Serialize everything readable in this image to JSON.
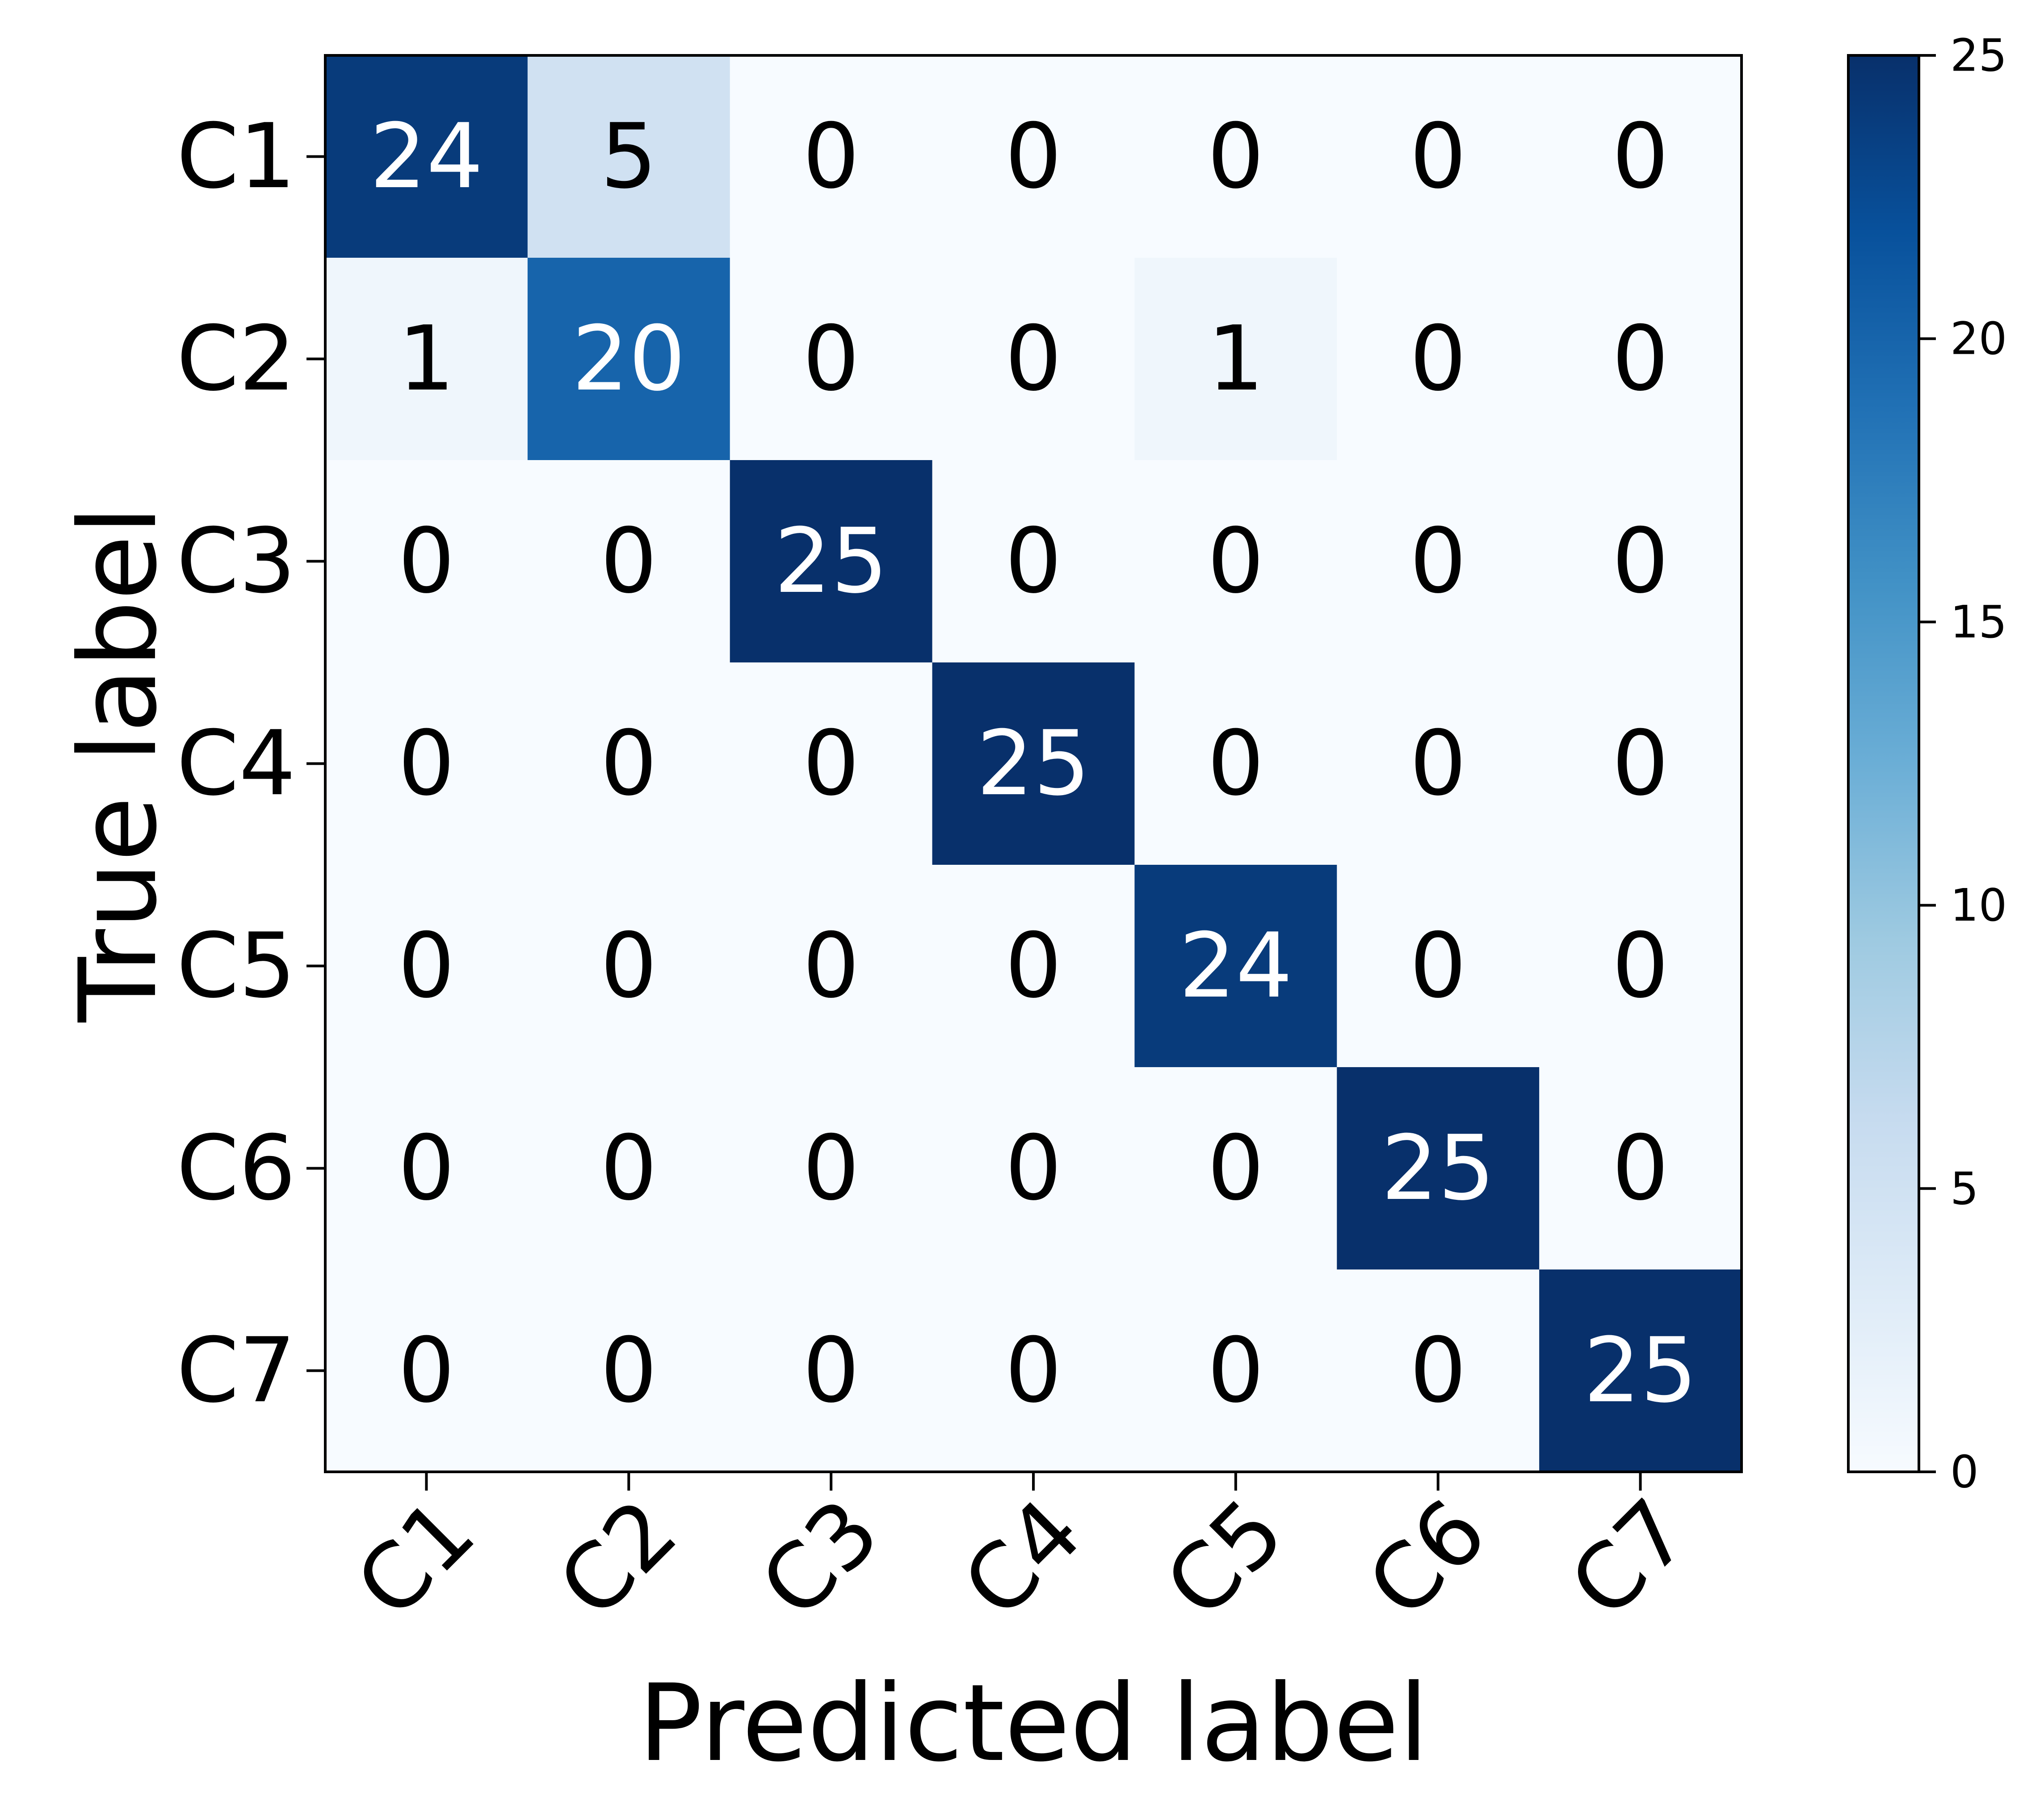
{
  "chart_data": {
    "type": "heatmap",
    "title": "",
    "xlabel": "Predicted label",
    "ylabel": "True label",
    "x_categories": [
      "C1",
      "C2",
      "C3",
      "C4",
      "C5",
      "C6",
      "C7"
    ],
    "y_categories": [
      "C1",
      "C2",
      "C3",
      "C4",
      "C5",
      "C6",
      "C7"
    ],
    "values": [
      [
        24,
        5,
        0,
        0,
        0,
        0,
        0
      ],
      [
        1,
        20,
        0,
        0,
        1,
        0,
        0
      ],
      [
        0,
        0,
        25,
        0,
        0,
        0,
        0
      ],
      [
        0,
        0,
        0,
        25,
        0,
        0,
        0
      ],
      [
        0,
        0,
        0,
        0,
        24,
        0,
        0
      ],
      [
        0,
        0,
        0,
        0,
        0,
        25,
        0
      ],
      [
        0,
        0,
        0,
        0,
        0,
        0,
        25
      ]
    ],
    "colormap": "Blues",
    "colorbar": {
      "range": [
        0,
        25
      ],
      "ticks": [
        "0",
        "5",
        "10",
        "15",
        "20",
        "25"
      ],
      "position": "right"
    },
    "grid": false,
    "annotation_colors": {
      "dark_cell": "#ffffff",
      "light_cell": "#000000"
    }
  }
}
